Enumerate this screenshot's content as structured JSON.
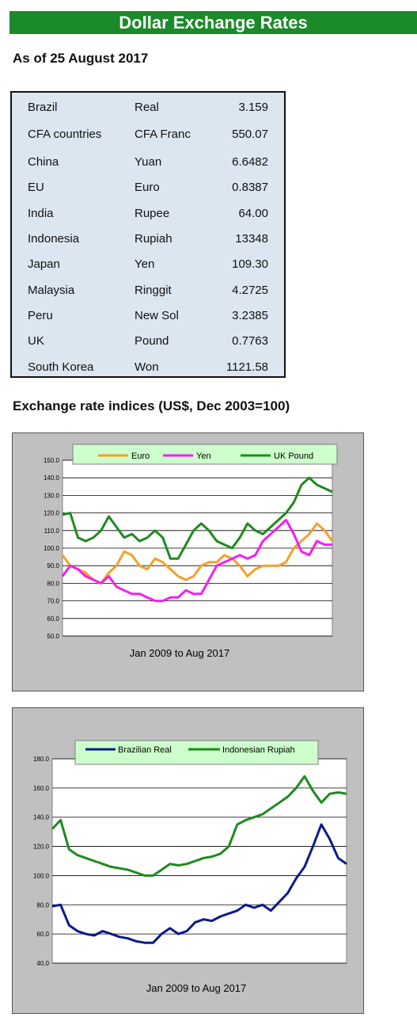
{
  "header": {
    "title": "Dollar Exchange Rates"
  },
  "as_of": "As of 25 August 2017",
  "rates": [
    {
      "country": "Brazil",
      "currency": "Real",
      "rate": "3.159"
    },
    {
      "country": "CFA countries",
      "currency": "CFA Franc",
      "rate": "550.07"
    },
    {
      "country": "China",
      "currency": "Yuan",
      "rate": "6.6482"
    },
    {
      "country": "EU",
      "currency": "Euro",
      "rate": "0.8387"
    },
    {
      "country": "India",
      "currency": "Rupee",
      "rate": "64.00"
    },
    {
      "country": "Indonesia",
      "currency": "Rupiah",
      "rate": "13348"
    },
    {
      "country": "Japan",
      "currency": "Yen",
      "rate": "109.30"
    },
    {
      "country": "Malaysia",
      "currency": "Ringgit",
      "rate": "4.2725"
    },
    {
      "country": "Peru",
      "currency": "New Sol",
      "rate": "3.2385"
    },
    {
      "country": "UK",
      "currency": "Pound",
      "rate": "0.7763"
    },
    {
      "country": "South Korea",
      "currency": "Won",
      "rate": "1121.58"
    }
  ],
  "indices_heading": "Exchange rate indices (US$, Dec 2003=100)",
  "colors": {
    "banner": "#1b8a2a",
    "table_bg": "#dce6f1",
    "euro": "#f4a02a",
    "yen": "#f41ef4",
    "pound": "#1e8a1e",
    "real": "#0a1a8a",
    "rupiah": "#1e8a1e",
    "legend_bg": "#ccffcc"
  },
  "chart_data": [
    {
      "type": "line",
      "xlabel": "Jan 2009  to Aug 2017",
      "ylim": [
        50,
        150
      ],
      "yticks": [
        "50.0",
        "60.0",
        "70.0",
        "80.0",
        "90.0",
        "100.0",
        "110.0",
        "120.0",
        "130.0",
        "140.0",
        "150.0"
      ],
      "grid": true,
      "legend": "top",
      "x": [
        "2009-01",
        "2009-04",
        "2009-07",
        "2009-10",
        "2010-01",
        "2010-04",
        "2010-07",
        "2010-10",
        "2011-01",
        "2011-04",
        "2011-07",
        "2011-10",
        "2012-01",
        "2012-04",
        "2012-07",
        "2012-10",
        "2013-01",
        "2013-04",
        "2013-07",
        "2013-10",
        "2014-01",
        "2014-04",
        "2014-07",
        "2014-10",
        "2015-01",
        "2015-04",
        "2015-07",
        "2015-10",
        "2016-01",
        "2016-04",
        "2016-07",
        "2016-10",
        "2017-01",
        "2017-04",
        "2017-07",
        "2017-08"
      ],
      "series": [
        {
          "name": "Euro",
          "color_key": "euro",
          "values": [
            96,
            90,
            88,
            86,
            82,
            80,
            86,
            90,
            98,
            96,
            90,
            88,
            94,
            92,
            88,
            84,
            82,
            84,
            90,
            92,
            92,
            96,
            94,
            90,
            84,
            88,
            90,
            90,
            90,
            92,
            100,
            104,
            108,
            114,
            110,
            104
          ]
        },
        {
          "name": "Yen",
          "color_key": "yen",
          "values": [
            84,
            90,
            88,
            84,
            82,
            80,
            84,
            78,
            76,
            74,
            74,
            72,
            70,
            70,
            72,
            72,
            76,
            74,
            74,
            82,
            90,
            92,
            94,
            96,
            94,
            96,
            104,
            108,
            112,
            116,
            108,
            98,
            96,
            104,
            102,
            102
          ]
        },
        {
          "name": "UK Pound",
          "color_key": "pound",
          "values": [
            119,
            120,
            106,
            104,
            106,
            110,
            118,
            112,
            106,
            108,
            104,
            106,
            110,
            106,
            94,
            94,
            102,
            110,
            114,
            110,
            104,
            102,
            100,
            106,
            114,
            110,
            108,
            112,
            116,
            120,
            126,
            136,
            140,
            136,
            134,
            132
          ]
        }
      ]
    },
    {
      "type": "line",
      "xlabel": "Jan 2009 to Aug 2017",
      "ylim": [
        40,
        180
      ],
      "yticks": [
        "40.0",
        "60.0",
        "80.0",
        "100.0",
        "120.0",
        "140.0",
        "160.0",
        "180.0"
      ],
      "grid": true,
      "legend": "top",
      "x": [
        "2009-01",
        "2009-04",
        "2009-07",
        "2009-10",
        "2010-01",
        "2010-04",
        "2010-07",
        "2010-10",
        "2011-01",
        "2011-04",
        "2011-07",
        "2011-10",
        "2012-01",
        "2012-04",
        "2012-07",
        "2012-10",
        "2013-01",
        "2013-04",
        "2013-07",
        "2013-10",
        "2014-01",
        "2014-04",
        "2014-07",
        "2014-10",
        "2015-01",
        "2015-04",
        "2015-07",
        "2015-10",
        "2016-01",
        "2016-04",
        "2016-07",
        "2016-10",
        "2017-01",
        "2017-04",
        "2017-07",
        "2017-08"
      ],
      "series": [
        {
          "name": "Brazilian Real",
          "color_key": "real",
          "values": [
            79,
            80,
            66,
            62,
            60,
            59,
            62,
            60,
            58,
            57,
            55,
            54,
            54,
            60,
            64,
            60,
            62,
            68,
            70,
            69,
            72,
            74,
            76,
            80,
            78,
            80,
            76,
            82,
            88,
            98,
            106,
            120,
            135,
            125,
            112,
            108
          ]
        },
        {
          "name": "Indonesian Rupiah",
          "color_key": "rupiah",
          "values": [
            132,
            138,
            118,
            114,
            112,
            110,
            108,
            106,
            105,
            104,
            102,
            100,
            100,
            104,
            108,
            107,
            108,
            110,
            112,
            113,
            115,
            120,
            135,
            138,
            140,
            142,
            146,
            150,
            154,
            160,
            168,
            158,
            150,
            156,
            157,
            156
          ]
        }
      ]
    }
  ]
}
